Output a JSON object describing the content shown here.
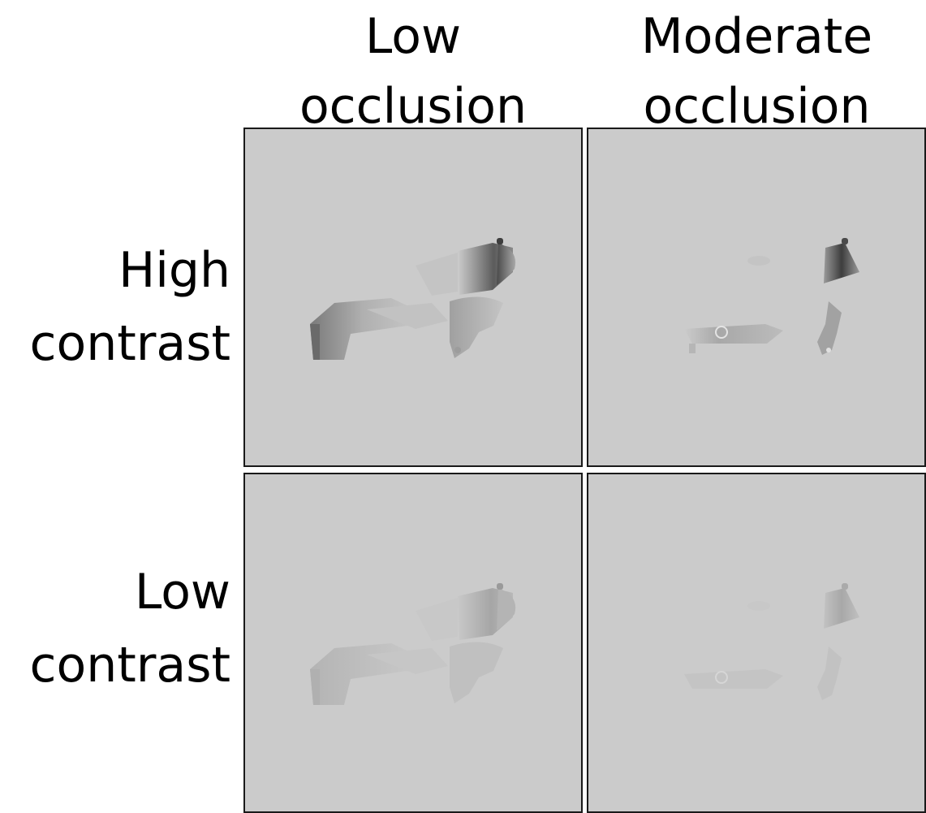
{
  "columns": [
    {
      "line1": "Low",
      "line2": "occlusion"
    },
    {
      "line1": "Moderate",
      "line2": "occlusion"
    }
  ],
  "rows": [
    {
      "line1": "High",
      "line2": "contrast"
    },
    {
      "line1": "Low",
      "line2": "contrast"
    }
  ],
  "colors": {
    "panel_background": "#cbcbcb",
    "panel_border": "#1a1a1a"
  },
  "panels": [
    {
      "contrast": "high",
      "occlusion": "low",
      "object_icon": "cannon-icon"
    },
    {
      "contrast": "high",
      "occlusion": "moderate",
      "object_icon": "cannon-icon"
    },
    {
      "contrast": "low",
      "occlusion": "low",
      "object_icon": "cannon-icon"
    },
    {
      "contrast": "low",
      "occlusion": "moderate",
      "object_icon": "cannon-icon"
    }
  ]
}
